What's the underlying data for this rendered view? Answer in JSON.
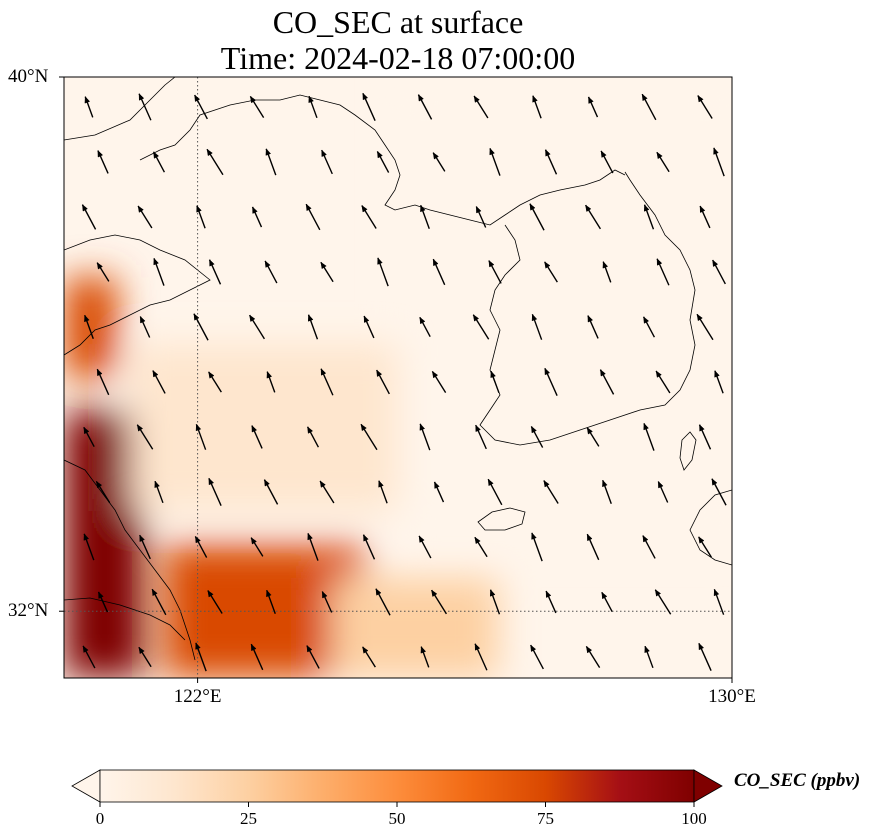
{
  "title": {
    "line1": "CO_SEC at surface",
    "line2": "Time: 2024-02-18 07:00:00"
  },
  "axes": {
    "lat_ticks": [
      {
        "value": 40,
        "label": "40°N"
      },
      {
        "value": 32,
        "label": "32°N"
      }
    ],
    "lon_ticks": [
      {
        "value": 122,
        "label": "122°E"
      },
      {
        "value": 130,
        "label": "130°E"
      }
    ]
  },
  "colorbar": {
    "label": "CO_SEC (ppbv)",
    "ticks": [
      {
        "value": 0,
        "label": "0"
      },
      {
        "value": 25,
        "label": "25"
      },
      {
        "value": 50,
        "label": "50"
      },
      {
        "value": 75,
        "label": "75"
      },
      {
        "value": 100,
        "label": "100"
      }
    ],
    "colormap": [
      "#fff5eb",
      "#fee6ce",
      "#fdd0a2",
      "#fdae6b",
      "#fd8d3c",
      "#f16913",
      "#d94801",
      "#a50f15",
      "#7f0000"
    ],
    "extend": "both"
  },
  "chart_data": {
    "type": "heatmap",
    "variable": "CO_SEC",
    "units": "ppbv",
    "lon_range": [
      120,
      130
    ],
    "lat_range": [
      31,
      40
    ],
    "color_range": [
      0,
      100
    ],
    "gridlines": {
      "lon": [
        122
      ],
      "lat": [
        32
      ]
    },
    "wind_direction": "north-northwest",
    "regions": [
      {
        "lon_min": 120,
        "lon_max": 121.2,
        "lat_min": 31,
        "lat_max": 35,
        "value": 100
      },
      {
        "lon_min": 120,
        "lon_max": 120.8,
        "lat_min": 35.5,
        "lat_max": 37,
        "value": 70
      },
      {
        "lon_min": 121.5,
        "lon_max": 124.5,
        "lat_min": 31,
        "lat_max": 33,
        "value": 70
      },
      {
        "lon_min": 124,
        "lon_max": 126.5,
        "lat_min": 31,
        "lat_max": 32.5,
        "value": 30
      },
      {
        "lon_min": 121,
        "lon_max": 125,
        "lat_min": 33.5,
        "lat_max": 36,
        "value": 15
      },
      {
        "lon_min": 125,
        "lon_max": 130,
        "lat_min": 33,
        "lat_max": 40,
        "value": 3
      }
    ]
  }
}
